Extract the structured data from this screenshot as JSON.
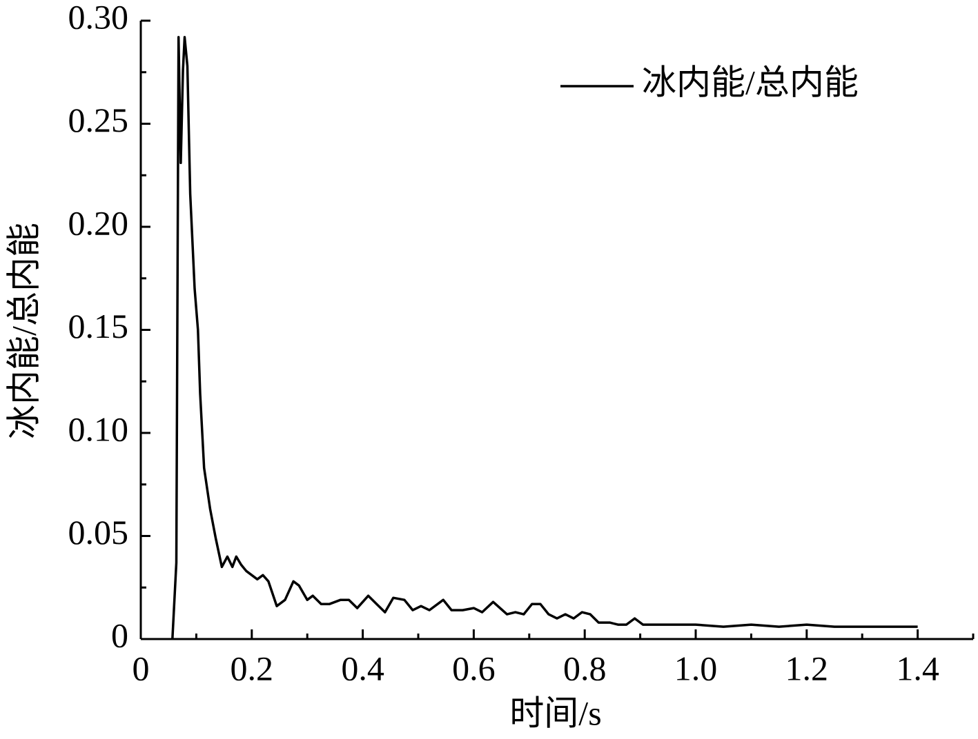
{
  "chart_data": {
    "type": "line",
    "xlabel": "时间/s",
    "ylabel": "冰内能/总内能",
    "series": [
      {
        "name": "冰内能/总内能",
        "color": "#000000",
        "x": [
          0.057,
          0.064,
          0.068,
          0.072,
          0.076,
          0.079,
          0.084,
          0.089,
          0.097,
          0.103,
          0.107,
          0.114,
          0.125,
          0.135,
          0.146,
          0.156,
          0.165,
          0.172,
          0.181,
          0.19,
          0.21,
          0.22,
          0.23,
          0.245,
          0.26,
          0.275,
          0.285,
          0.3,
          0.31,
          0.325,
          0.34,
          0.36,
          0.375,
          0.39,
          0.41,
          0.425,
          0.44,
          0.455,
          0.475,
          0.49,
          0.505,
          0.52,
          0.545,
          0.56,
          0.58,
          0.6,
          0.615,
          0.635,
          0.66,
          0.675,
          0.69,
          0.705,
          0.72,
          0.735,
          0.75,
          0.765,
          0.78,
          0.795,
          0.81,
          0.825,
          0.845,
          0.86,
          0.875,
          0.89,
          0.905,
          0.95,
          1.0,
          1.05,
          1.1,
          1.15,
          1.2,
          1.25,
          1.3,
          1.35,
          1.4
        ],
        "values": [
          0,
          0.037,
          0.292,
          0.231,
          0.276,
          0.292,
          0.278,
          0.216,
          0.17,
          0.15,
          0.119,
          0.083,
          0.063,
          0.049,
          0.035,
          0.04,
          0.035,
          0.04,
          0.036,
          0.033,
          0.029,
          0.031,
          0.028,
          0.016,
          0.019,
          0.028,
          0.026,
          0.019,
          0.021,
          0.017,
          0.017,
          0.019,
          0.019,
          0.015,
          0.021,
          0.017,
          0.013,
          0.02,
          0.019,
          0.014,
          0.016,
          0.014,
          0.019,
          0.014,
          0.014,
          0.015,
          0.013,
          0.018,
          0.012,
          0.013,
          0.012,
          0.017,
          0.017,
          0.012,
          0.01,
          0.012,
          0.01,
          0.013,
          0.012,
          0.008,
          0.008,
          0.007,
          0.007,
          0.01,
          0.007,
          0.007,
          0.007,
          0.006,
          0.007,
          0.006,
          0.007,
          0.006,
          0.006,
          0.006,
          0.006
        ]
      }
    ],
    "xlim": [
      0,
      1.5
    ],
    "xticks": [
      0,
      0.2,
      0.4,
      0.6,
      0.8,
      {
        "value": 1,
        "label": "1.0"
      },
      1.2,
      1.4
    ],
    "ylim": [
      0,
      0.3
    ],
    "yticks": [
      0,
      0.05,
      {
        "value": 0.1,
        "label": "0.10"
      },
      0.15,
      {
        "value": 0.2,
        "label": "0.20"
      },
      0.25,
      {
        "value": 0.3,
        "label": "0.30"
      }
    ],
    "legend": "upper right"
  }
}
